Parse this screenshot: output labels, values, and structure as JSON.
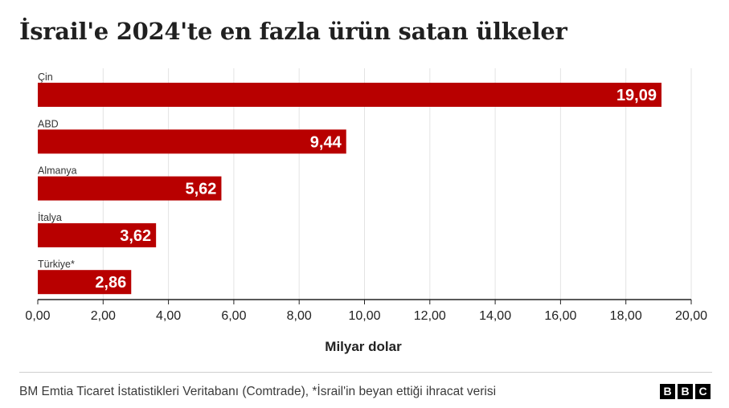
{
  "chart_data": {
    "type": "bar",
    "orientation": "horizontal",
    "title": "İsrail'e 2024'te en fazla ürün satan ülkeler",
    "xlabel": "Milyar dolar",
    "categories": [
      "Çin",
      "ABD",
      "Almanya",
      "İtalya",
      "Türkiye*"
    ],
    "values": [
      19.09,
      9.44,
      5.62,
      3.62,
      2.86
    ],
    "value_labels": [
      "19,09",
      "9,44",
      "5,62",
      "3,62",
      "2,86"
    ],
    "xlim": [
      0,
      20
    ],
    "ticks": [
      0,
      2,
      4,
      6,
      8,
      10,
      12,
      14,
      16,
      18,
      20
    ],
    "tick_labels": [
      "0,00",
      "2,00",
      "4,00",
      "6,00",
      "8,00",
      "10,00",
      "12,00",
      "14,00",
      "16,00",
      "18,00",
      "20,00"
    ],
    "grid": true,
    "bar_color": "#b80000"
  },
  "footer": {
    "source": "BM Emtia Ticaret İstatistikleri Veritabanı (Comtrade), *İsrail'in beyan ettiği ihracat verisi",
    "logo_letters": [
      "B",
      "B",
      "C"
    ]
  }
}
